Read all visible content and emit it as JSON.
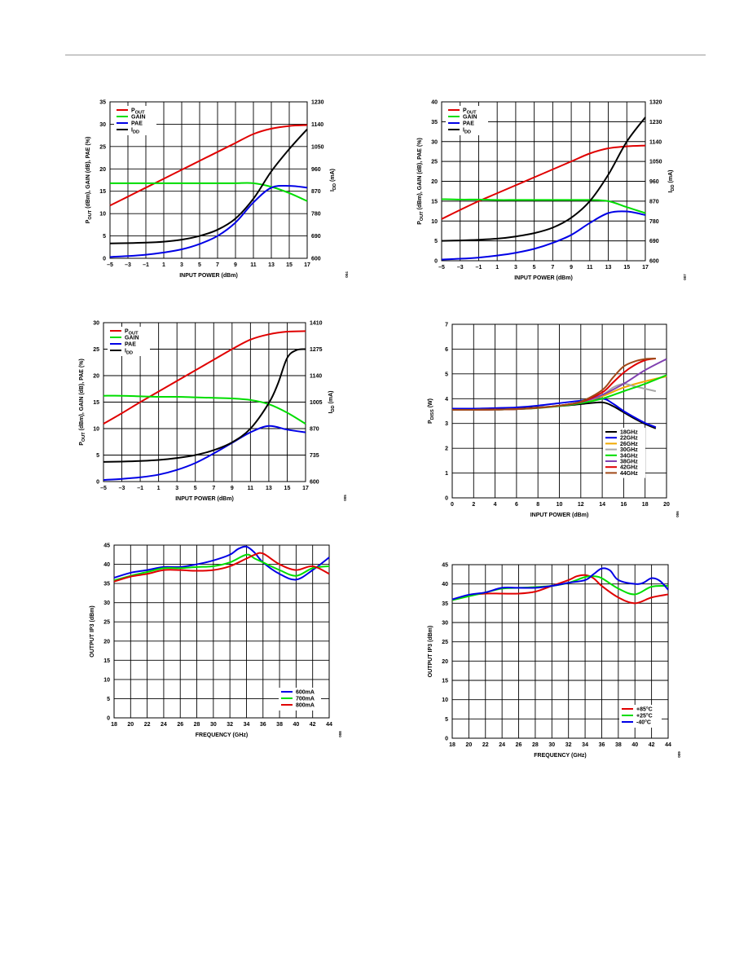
{
  "colors": {
    "red": "#e00000",
    "green": "#00dd00",
    "blue": "#0000e6",
    "black": "#000000",
    "orange": "#f0a800",
    "gray": "#a8a8a8",
    "purple": "#8040b0",
    "brown": "#a04818",
    "grid": "#000000"
  },
  "chart_data": [
    {
      "type": "line",
      "xlabel": "INPUT POWER (dBm)",
      "ylabel": "POUT (dBm), GAIN (dB), PAE (%)",
      "y2label": "IDD (mA)",
      "xlim": [
        -5,
        17
      ],
      "ylim": [
        0,
        35
      ],
      "y2lim": [
        600,
        1230
      ],
      "xticks": [
        -5,
        -3,
        -1,
        1,
        3,
        5,
        7,
        9,
        11,
        13,
        15,
        17
      ],
      "yticks": [
        0,
        5,
        10,
        15,
        20,
        25,
        30,
        35
      ],
      "y2ticks": [
        600,
        690,
        780,
        870,
        960,
        1050,
        1140,
        1230
      ],
      "grid": true,
      "legend_position": "top-left",
      "figure_id": "004",
      "series": [
        {
          "name": "POUT",
          "color": "red",
          "x": [
            -5,
            -3,
            -1,
            1,
            3,
            5,
            7,
            9,
            11,
            13,
            15,
            17
          ],
          "values": [
            11.8,
            13.8,
            15.8,
            17.8,
            19.8,
            21.8,
            23.8,
            25.8,
            27.8,
            29.0,
            29.6,
            29.8
          ]
        },
        {
          "name": "GAIN",
          "color": "green",
          "x": [
            -5,
            -3,
            -1,
            1,
            3,
            5,
            7,
            9,
            11,
            13,
            15,
            17
          ],
          "values": [
            16.8,
            16.8,
            16.8,
            16.8,
            16.8,
            16.8,
            16.8,
            16.8,
            16.8,
            16.0,
            14.6,
            12.8
          ]
        },
        {
          "name": "PAE",
          "color": "blue",
          "x": [
            -5,
            -3,
            -1,
            1,
            3,
            5,
            7,
            9,
            11,
            13,
            15,
            17
          ],
          "values": [
            0.3,
            0.5,
            0.8,
            1.3,
            2.0,
            3.2,
            5.0,
            8.0,
            12.5,
            15.8,
            16.2,
            15.8
          ]
        },
        {
          "name": "IDD",
          "color": "black",
          "axis": "y2",
          "x": [
            -5,
            -3,
            -1,
            1,
            3,
            5,
            7,
            9,
            11,
            13,
            15,
            17
          ],
          "values": [
            660,
            661,
            663,
            667,
            675,
            690,
            715,
            760,
            840,
            950,
            1040,
            1120
          ]
        }
      ]
    },
    {
      "type": "line",
      "xlabel": "INPUT POWER (dBm)",
      "ylabel": "POUT (dBm), GAIN (dB), PAE (%)",
      "y2label": "IDD (mA)",
      "xlim": [
        -5,
        17
      ],
      "ylim": [
        0,
        40
      ],
      "y2lim": [
        600,
        1320
      ],
      "xticks": [
        -5,
        -3,
        -1,
        1,
        3,
        5,
        7,
        9,
        11,
        13,
        15,
        17
      ],
      "yticks": [
        0,
        5,
        10,
        15,
        20,
        25,
        30,
        35,
        40
      ],
      "y2ticks": [
        600,
        690,
        780,
        870,
        960,
        1050,
        1140,
        1230,
        1320
      ],
      "grid": true,
      "legend_position": "top-left",
      "figure_id": "007",
      "series": [
        {
          "name": "POUT",
          "color": "red",
          "x": [
            -5,
            -3,
            -1,
            1,
            3,
            5,
            7,
            9,
            11,
            13,
            15,
            17
          ],
          "values": [
            10.5,
            12.8,
            15.0,
            17.0,
            19.0,
            21.0,
            23.0,
            25.0,
            27.0,
            28.3,
            28.8,
            29.0
          ]
        },
        {
          "name": "GAIN",
          "color": "green",
          "x": [
            -5,
            -3,
            -1,
            1,
            3,
            5,
            7,
            9,
            11,
            13,
            15,
            17
          ],
          "values": [
            15.5,
            15.4,
            15.4,
            15.3,
            15.3,
            15.3,
            15.3,
            15.3,
            15.3,
            15.0,
            13.5,
            12.0
          ]
        },
        {
          "name": "PAE",
          "color": "blue",
          "x": [
            -5,
            -3,
            -1,
            1,
            3,
            5,
            7,
            9,
            11,
            13,
            15,
            17
          ],
          "values": [
            0.3,
            0.5,
            0.8,
            1.3,
            2.0,
            3.0,
            4.5,
            6.5,
            9.5,
            12.0,
            12.4,
            11.5
          ]
        },
        {
          "name": "IDD",
          "color": "black",
          "axis": "y2",
          "x": [
            -5,
            -3,
            -1,
            1,
            3,
            5,
            7,
            9,
            11,
            13,
            15,
            17
          ],
          "values": [
            690,
            692,
            695,
            700,
            710,
            725,
            750,
            795,
            870,
            990,
            1140,
            1250
          ]
        }
      ]
    },
    {
      "type": "line",
      "xlabel": "INPUT POWER (dBm)",
      "ylabel": "POUT (dBm), GAIN (dB), PAE (%)",
      "y2label": "IDD (mA)",
      "xlim": [
        -5,
        17
      ],
      "ylim": [
        0,
        30
      ],
      "y2lim": [
        600,
        1410
      ],
      "xticks": [
        -5,
        -3,
        -1,
        1,
        3,
        5,
        7,
        9,
        11,
        13,
        15,
        17
      ],
      "yticks": [
        0,
        5,
        10,
        15,
        20,
        25,
        30
      ],
      "y2ticks": [
        600,
        735,
        870,
        1005,
        1140,
        1275,
        1410
      ],
      "grid": true,
      "legend_position": "top-left",
      "figure_id": "005",
      "series": [
        {
          "name": "POUT",
          "color": "red",
          "x": [
            -5,
            -3,
            -1,
            1,
            3,
            5,
            7,
            9,
            11,
            13,
            15,
            17
          ],
          "values": [
            10.9,
            12.9,
            15.0,
            17.0,
            19.0,
            21.0,
            23.0,
            25.0,
            26.8,
            27.8,
            28.3,
            28.4
          ]
        },
        {
          "name": "GAIN",
          "color": "green",
          "x": [
            -5,
            -3,
            -1,
            1,
            3,
            5,
            7,
            9,
            11,
            13,
            15,
            17
          ],
          "values": [
            16.2,
            16.2,
            16.1,
            16.0,
            16.0,
            15.9,
            15.8,
            15.7,
            15.4,
            14.6,
            13.0,
            10.9
          ]
        },
        {
          "name": "PAE",
          "color": "blue",
          "x": [
            -5,
            -3,
            -1,
            1,
            3,
            5,
            7,
            9,
            11,
            13,
            15,
            17
          ],
          "values": [
            0.3,
            0.5,
            0.8,
            1.3,
            2.2,
            3.5,
            5.3,
            7.3,
            9.3,
            10.5,
            9.8,
            9.3
          ]
        },
        {
          "name": "IDD",
          "color": "black",
          "axis": "y2",
          "x": [
            -5,
            -3,
            -1,
            1,
            3,
            5,
            7,
            9,
            11,
            13,
            14,
            15,
            16,
            17
          ],
          "values": [
            700,
            702,
            705,
            710,
            720,
            735,
            760,
            800,
            870,
            1000,
            1100,
            1230,
            1270,
            1275
          ]
        }
      ]
    },
    {
      "type": "line",
      "xlabel": "INPUT POWER (dBm)",
      "ylabel": "PDISS (W)",
      "xlim": [
        0,
        20
      ],
      "ylim": [
        0,
        7
      ],
      "xticks": [
        0,
        2,
        4,
        6,
        8,
        10,
        12,
        14,
        16,
        18,
        20
      ],
      "yticks": [
        0,
        1,
        2,
        3,
        4,
        5,
        6,
        7
      ],
      "grid": true,
      "legend_position": "bottom-right",
      "figure_id": "006",
      "series": [
        {
          "name": "18GHz",
          "color": "black",
          "x": [
            0,
            2,
            4,
            6,
            8,
            10,
            12,
            14,
            15,
            16,
            17,
            18,
            19
          ],
          "values": [
            3.6,
            3.6,
            3.6,
            3.6,
            3.65,
            3.7,
            3.78,
            3.85,
            3.7,
            3.45,
            3.2,
            2.98,
            2.8
          ]
        },
        {
          "name": "22GHz",
          "color": "blue",
          "x": [
            0,
            2,
            4,
            6,
            8,
            10,
            12,
            14,
            15,
            16,
            17,
            18,
            19
          ],
          "values": [
            3.6,
            3.6,
            3.62,
            3.65,
            3.72,
            3.82,
            3.92,
            4.0,
            3.8,
            3.5,
            3.25,
            3.02,
            2.85
          ]
        },
        {
          "name": "26GHz",
          "color": "orange",
          "x": [
            0,
            2,
            4,
            6,
            8,
            10,
            12,
            14,
            16,
            18,
            20
          ],
          "values": [
            3.55,
            3.55,
            3.56,
            3.58,
            3.63,
            3.72,
            3.85,
            4.1,
            4.45,
            4.7,
            4.9
          ]
        },
        {
          "name": "30GHz",
          "color": "gray",
          "x": [
            0,
            2,
            4,
            6,
            8,
            10,
            12,
            14,
            15,
            16,
            17,
            18,
            19
          ],
          "values": [
            3.55,
            3.55,
            3.56,
            3.58,
            3.63,
            3.72,
            3.85,
            4.15,
            4.45,
            4.6,
            4.5,
            4.4,
            4.3
          ]
        },
        {
          "name": "34GHz",
          "color": "green",
          "x": [
            0,
            2,
            4,
            6,
            8,
            10,
            12,
            14,
            16,
            18,
            20
          ],
          "values": [
            3.55,
            3.55,
            3.56,
            3.58,
            3.62,
            3.7,
            3.82,
            4.0,
            4.3,
            4.6,
            4.95
          ]
        },
        {
          "name": "38GHz",
          "color": "purple",
          "x": [
            0,
            2,
            4,
            6,
            8,
            10,
            12,
            14,
            16,
            18,
            20
          ],
          "values": [
            3.55,
            3.55,
            3.56,
            3.58,
            3.63,
            3.72,
            3.86,
            4.15,
            4.6,
            5.15,
            5.6
          ]
        },
        {
          "name": "42GHz",
          "color": "red",
          "x": [
            0,
            2,
            4,
            6,
            8,
            10,
            12,
            14,
            15,
            16,
            17,
            18,
            19
          ],
          "values": [
            3.55,
            3.55,
            3.56,
            3.58,
            3.63,
            3.72,
            3.87,
            4.25,
            4.65,
            5.05,
            5.35,
            5.55,
            5.62
          ]
        },
        {
          "name": "44GHz",
          "color": "brown",
          "x": [
            0,
            2,
            4,
            6,
            8,
            10,
            12,
            14,
            15,
            16,
            17,
            18,
            19
          ],
          "values": [
            3.55,
            3.55,
            3.56,
            3.58,
            3.63,
            3.72,
            3.88,
            4.35,
            4.85,
            5.3,
            5.5,
            5.6,
            5.62
          ]
        }
      ]
    },
    {
      "type": "line",
      "xlabel": "FREQUENCY (GHz)",
      "ylabel": "OUTPUT IP3 (dBm)",
      "xlim": [
        18,
        44
      ],
      "ylim": [
        0,
        45
      ],
      "xticks": [
        18,
        20,
        22,
        24,
        26,
        28,
        30,
        32,
        34,
        36,
        38,
        40,
        42,
        44
      ],
      "yticks": [
        0,
        5,
        10,
        15,
        20,
        25,
        30,
        35,
        40,
        45
      ],
      "grid": true,
      "legend_position": "bottom-right",
      "figure_id": "008",
      "series": [
        {
          "name": "600mA",
          "color": "blue",
          "x": [
            18,
            20,
            22,
            24,
            26,
            28,
            30,
            32,
            33,
            34,
            35,
            36,
            38,
            40,
            42,
            44
          ],
          "values": [
            36.5,
            37.8,
            38.5,
            39.3,
            39.3,
            40.0,
            41.0,
            42.5,
            44.0,
            44.6,
            43.0,
            40.5,
            37.5,
            36.0,
            38.5,
            41.8
          ]
        },
        {
          "name": "700mA",
          "color": "green",
          "x": [
            18,
            20,
            22,
            24,
            26,
            28,
            30,
            32,
            34,
            35,
            36,
            38,
            40,
            42,
            44
          ],
          "values": [
            35.8,
            37.0,
            38.0,
            39.0,
            39.0,
            39.3,
            39.5,
            40.5,
            42.5,
            41.5,
            40.5,
            38.5,
            37.0,
            39.0,
            39.5
          ]
        },
        {
          "name": "800mA",
          "color": "red",
          "x": [
            18,
            20,
            22,
            24,
            26,
            28,
            30,
            32,
            34,
            35,
            36,
            38,
            40,
            42,
            44
          ],
          "values": [
            35.5,
            36.8,
            37.5,
            38.5,
            38.5,
            38.3,
            38.5,
            39.5,
            41.5,
            42.5,
            42.8,
            40.0,
            38.5,
            39.5,
            37.5
          ]
        }
      ]
    },
    {
      "type": "line",
      "xlabel": "FREQUENCY (GHz)",
      "ylabel": "OUTPUT IP3 (dBm)",
      "xlim": [
        18,
        44
      ],
      "ylim": [
        0,
        45
      ],
      "xticks": [
        18,
        20,
        22,
        24,
        26,
        28,
        30,
        32,
        34,
        36,
        38,
        40,
        42,
        44
      ],
      "yticks": [
        0,
        5,
        10,
        15,
        20,
        25,
        30,
        35,
        40,
        45
      ],
      "grid": true,
      "legend_position": "bottom-right",
      "figure_id": "009",
      "series": [
        {
          "name": "+85°C",
          "color": "red",
          "x": [
            18,
            20,
            22,
            24,
            26,
            28,
            30,
            32,
            33,
            34,
            35,
            36,
            38,
            40,
            42,
            44
          ],
          "values": [
            35.8,
            37.0,
            37.5,
            37.5,
            37.5,
            38.0,
            39.5,
            41.0,
            42.0,
            42.3,
            41.5,
            39.5,
            36.5,
            35.0,
            36.5,
            37.3
          ]
        },
        {
          "name": "+25°C",
          "color": "green",
          "x": [
            18,
            20,
            22,
            24,
            26,
            28,
            30,
            32,
            34,
            35,
            36,
            38,
            40,
            42,
            44
          ],
          "values": [
            35.8,
            36.8,
            37.8,
            38.8,
            39.0,
            39.2,
            39.5,
            40.3,
            41.8,
            42.0,
            41.5,
            38.8,
            37.3,
            39.3,
            39.5
          ]
        },
        {
          "name": "-40°C",
          "color": "blue",
          "x": [
            18,
            20,
            22,
            24,
            26,
            28,
            30,
            32,
            34,
            35,
            36,
            37,
            38,
            40,
            41,
            42,
            43,
            44
          ],
          "values": [
            36.0,
            37.2,
            37.8,
            39.0,
            39.0,
            39.0,
            39.5,
            40.3,
            41.0,
            42.5,
            44.0,
            43.5,
            41.0,
            40.0,
            40.3,
            41.5,
            40.8,
            38.5
          ]
        }
      ]
    }
  ]
}
